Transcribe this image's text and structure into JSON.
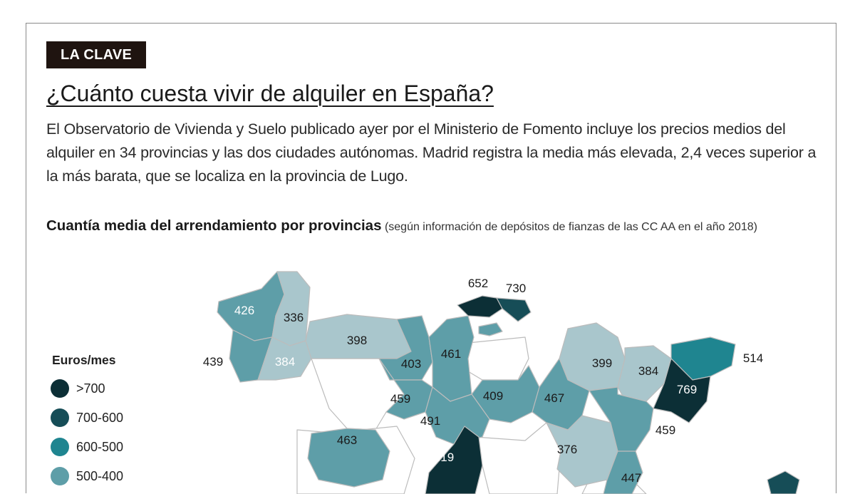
{
  "tag": "LA CLAVE",
  "headline": "¿Cuánto cuesta vivir de alquiler en España?",
  "lead": "El Observatorio de Vivienda y Suelo publicado ayer por el Ministerio de Fomento incluye los precios medios del alquiler en 34 provincias y las dos ciudades autónomas. Madrid registra la media más elevada, 2,4 veces superior a la más barata, que se localiza en la provincia de Lugo.",
  "map_title": "Cuantía media del arrendamiento por provincias",
  "map_note": "(según información de depósitos de fianzas de las CC AA en el año 2018)",
  "legend": {
    "title": "Euros/mes",
    "items": [
      {
        "label": ">700",
        "color": "#0c2f36"
      },
      {
        "label": "700-600",
        "color": "#164d57"
      },
      {
        "label": "600-500",
        "color": "#1f8590"
      },
      {
        "label": "500-400",
        "color": "#5e9ea8"
      }
    ]
  },
  "colors": {
    "over_700": "#0c2f36",
    "700_600": "#164d57",
    "600_500": "#1f8590",
    "500_400": "#5e9ea8",
    "under_400": "#a9c6cc",
    "no_data": "#ffffff",
    "border": "#bcbcbc"
  },
  "provinces": [
    {
      "value": "426"
    },
    {
      "value": "336"
    },
    {
      "value": "439"
    },
    {
      "value": "384"
    },
    {
      "value": "398"
    },
    {
      "value": "652"
    },
    {
      "value": "730"
    },
    {
      "value": "403"
    },
    {
      "value": "461"
    },
    {
      "value": "399"
    },
    {
      "value": "384"
    },
    {
      "value": "514"
    },
    {
      "value": "769"
    },
    {
      "value": "459"
    },
    {
      "value": "409"
    },
    {
      "value": "467"
    },
    {
      "value": "491"
    },
    {
      "value": "463"
    },
    {
      "value": "819"
    },
    {
      "value": "376"
    },
    {
      "value": "459"
    },
    {
      "value": "447"
    }
  ]
}
